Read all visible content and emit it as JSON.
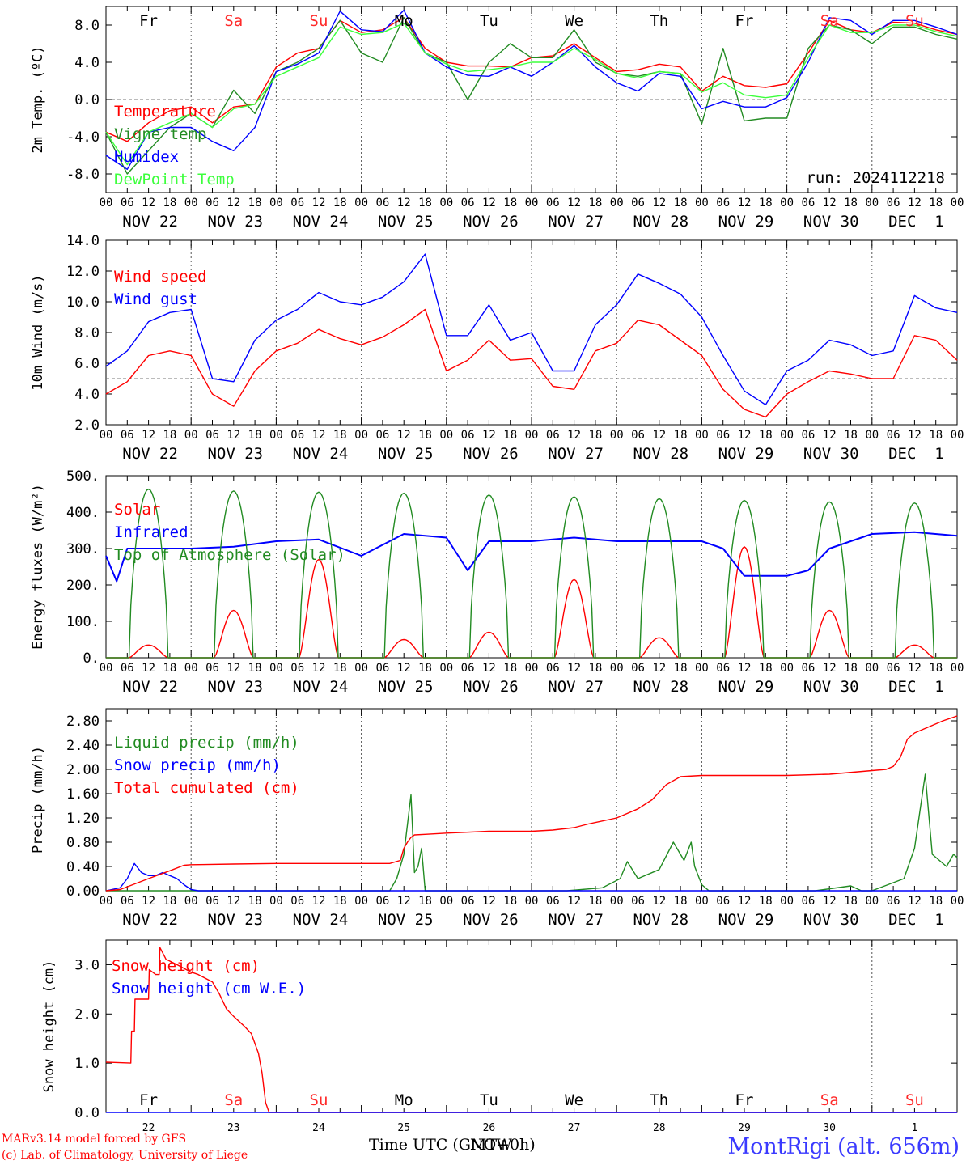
{
  "run_label": "run: 2024112218",
  "day_abbrevs": [
    "Fr",
    "Sa",
    "Su",
    "Mo",
    "Tu",
    "We",
    "Th",
    "Fr",
    "Sa",
    "Su"
  ],
  "weekend_color": "#ff2a2a",
  "weekday_color": "#000000",
  "hour_ticks": [
    "00",
    "06",
    "12",
    "18"
  ],
  "date_labels": [
    "NOV 22",
    "NOV 23",
    "NOV 24",
    "NOV 25",
    "NOV 26",
    "NOV 27",
    "NOV 28",
    "NOV 29",
    "NOV 30",
    "DEC  1"
  ],
  "snow_day_numbers": [
    "22",
    "23",
    "24",
    "25",
    "26",
    "27",
    "28",
    "29",
    "30",
    "1"
  ],
  "footer": {
    "model_line": "MARv3.14 model forced by GFS",
    "lab_line": "(c) Lab. of Climatology, University of Liege",
    "time_axis_label": "Time UTC (GMT+0h)",
    "time_axis_overprint": "NOW",
    "station": "MontRigi (alt. 656m)"
  },
  "chart_data": [
    {
      "type": "line",
      "id": "temperature",
      "ylabel": "2m Temp. (ºC)",
      "ylim": [
        -10,
        10
      ],
      "yticks": [
        -8,
        -4,
        0,
        4,
        8
      ],
      "ytick_labels": [
        "-8.0",
        "-4.0",
        "0.0",
        "4.0",
        "8.0"
      ],
      "reference_line": 0,
      "x_hours": [
        0,
        6,
        12,
        18,
        24,
        30,
        36,
        42,
        48,
        54,
        60,
        66,
        72,
        78,
        84,
        90,
        96,
        102,
        108,
        114,
        120,
        126,
        132,
        138,
        144,
        150,
        156,
        162,
        168,
        174,
        180,
        186,
        192,
        198,
        204,
        210,
        216,
        222,
        228,
        234,
        240
      ],
      "series": [
        {
          "name": "Temperature",
          "color": "#ff0000",
          "values": [
            -3.5,
            -4.5,
            -2.5,
            -1.2,
            -0.8,
            -2.5,
            -0.8,
            -0.5,
            3.5,
            5,
            5.5,
            8.5,
            7.2,
            7.5,
            8.8,
            5.5,
            4,
            3.6,
            3.6,
            3.5,
            4.5,
            4.7,
            6,
            4.5,
            3,
            3.2,
            3.8,
            3.5,
            0.9,
            2.5,
            1.5,
            1.3,
            1.7,
            5,
            8.5,
            7.5,
            7.2,
            8.3,
            8.2,
            7.5,
            7
          ]
        },
        {
          "name": "Vigne temp",
          "color": "#228b22",
          "values": [
            -3.5,
            -8,
            -5.5,
            -3,
            -1.5,
            -3,
            1,
            -1.5,
            3,
            4,
            5.5,
            8.5,
            5,
            4,
            8.8,
            5,
            4,
            0,
            4,
            6,
            4.5,
            4.5,
            7.5,
            4,
            2.8,
            2.5,
            3,
            2.8,
            -2.6,
            5.5,
            -2.3,
            -2,
            -2,
            5.5,
            8,
            7.5,
            6,
            7.8,
            7.8,
            7,
            6.5
          ]
        },
        {
          "name": "Humidex",
          "color": "#0000ff",
          "values": [
            -6,
            -7.5,
            -3.5,
            -3,
            -3,
            -4.5,
            -5.5,
            -3,
            3,
            3.8,
            5,
            9.5,
            7.5,
            7.3,
            9.6,
            5,
            3.5,
            2.6,
            2.5,
            3.5,
            2.5,
            4,
            5.8,
            3.5,
            1.8,
            0.9,
            2.8,
            2.5,
            -1,
            -0.2,
            -0.8,
            -0.8,
            0.2,
            4,
            8.8,
            8.5,
            7,
            8.5,
            8.5,
            7.8,
            7
          ]
        },
        {
          "name": "DewPoint Temp",
          "color": "#3cff3c",
          "values": [
            -3.5,
            -7,
            -3.5,
            -2.5,
            -1.5,
            -3,
            -1,
            -0.5,
            2.5,
            3.5,
            4.5,
            7.8,
            7,
            7.2,
            8.2,
            5,
            3.8,
            3,
            3.2,
            3.5,
            4,
            4,
            5.5,
            4.3,
            2.8,
            2.3,
            3,
            2.8,
            0.8,
            1.8,
            0.5,
            0.2,
            0.5,
            4.5,
            8,
            7.2,
            7.2,
            8,
            8,
            7.3,
            6.8
          ]
        }
      ]
    },
    {
      "type": "line",
      "id": "wind",
      "ylabel": "10m Wind (m/s)",
      "ylim": [
        2,
        14
      ],
      "yticks": [
        2,
        4,
        6,
        8,
        10,
        12,
        14
      ],
      "ytick_labels": [
        "2.0",
        "4.0",
        "6.0",
        "8.0",
        "10.0",
        "12.0",
        "14.0"
      ],
      "reference_line": 5,
      "x_hours": [
        0,
        6,
        12,
        18,
        24,
        30,
        36,
        42,
        48,
        54,
        60,
        66,
        72,
        78,
        84,
        90,
        96,
        102,
        108,
        114,
        120,
        126,
        132,
        138,
        144,
        150,
        156,
        162,
        168,
        174,
        180,
        186,
        192,
        198,
        204,
        210,
        216,
        222,
        228,
        234,
        240
      ],
      "series": [
        {
          "name": "Wind speed",
          "color": "#ff0000",
          "values": [
            4,
            4.8,
            6.5,
            6.8,
            6.5,
            4,
            3.2,
            5.5,
            6.8,
            7.3,
            8.2,
            7.6,
            7.2,
            7.7,
            8.5,
            9.5,
            5.5,
            6.2,
            7.5,
            6.2,
            6.3,
            4.5,
            4.3,
            6.8,
            7.3,
            8.8,
            8.5,
            7.5,
            6.5,
            4.3,
            3,
            2.5,
            4,
            4.8,
            5.5,
            5.3,
            5,
            5,
            7.8,
            7.5,
            6.2
          ]
        },
        {
          "name": "Wind gust",
          "color": "#0000ff",
          "values": [
            5.8,
            6.8,
            8.7,
            9.3,
            9.5,
            5,
            4.8,
            7.5,
            8.8,
            9.5,
            10.6,
            10,
            9.8,
            10.3,
            11.3,
            13.1,
            7.8,
            7.8,
            9.8,
            7.5,
            8,
            5.5,
            5.5,
            8.5,
            9.8,
            11.8,
            11.2,
            10.5,
            9,
            6.5,
            4.2,
            3.3,
            5.5,
            6.2,
            7.5,
            7.2,
            6.5,
            6.8,
            10.4,
            9.6,
            9.3
          ]
        }
      ]
    },
    {
      "type": "line",
      "id": "energy",
      "ylabel": "Energy fluxes (W/m²)",
      "ylim": [
        0,
        500
      ],
      "yticks": [
        0,
        100,
        200,
        300,
        400,
        500
      ],
      "ytick_labels": [
        "0.",
        "100.",
        "200.",
        "300.",
        "400.",
        "500."
      ],
      "series": [
        {
          "name": "Solar",
          "color": "#ff0000",
          "peaks": [
            [
              12,
              35
            ],
            [
              36,
              130
            ],
            [
              60,
              270
            ],
            [
              84,
              50
            ],
            [
              108,
              70
            ],
            [
              132,
              215
            ],
            [
              156,
              55
            ],
            [
              180,
              305
            ],
            [
              204,
              130
            ],
            [
              228,
              35
            ]
          ]
        },
        {
          "name": "Infrared",
          "color": "#0000ff",
          "x_hours": [
            0,
            3,
            6,
            12,
            24,
            36,
            48,
            60,
            72,
            84,
            96,
            102,
            108,
            120,
            132,
            144,
            156,
            168,
            174,
            180,
            192,
            198,
            204,
            216,
            228,
            240
          ],
          "values": [
            280,
            210,
            300,
            300,
            300,
            305,
            320,
            325,
            280,
            340,
            330,
            240,
            320,
            320,
            330,
            320,
            320,
            320,
            300,
            225,
            225,
            240,
            300,
            340,
            345,
            335
          ]
        },
        {
          "name": "Top of Atmosphere (Solar)",
          "color": "#228b22",
          "peaks": [
            [
              12,
              463
            ],
            [
              36,
              458
            ],
            [
              60,
              455
            ],
            [
              84,
              452
            ],
            [
              108,
              447
            ],
            [
              132,
              442
            ],
            [
              156,
              437
            ],
            [
              180,
              432
            ],
            [
              204,
              428
            ],
            [
              228,
              425
            ]
          ]
        }
      ]
    },
    {
      "type": "line",
      "id": "precip",
      "ylabel": "Precip (mm/h)",
      "ylim": [
        0,
        3
      ],
      "yticks": [
        0,
        0.4,
        0.8,
        1.2,
        1.6,
        2.0,
        2.4,
        2.8
      ],
      "ytick_labels": [
        "0.00",
        "0.40",
        "0.80",
        "1.20",
        "1.60",
        "2.00",
        "2.40",
        "2.80"
      ],
      "series": [
        {
          "name": "Liquid precip (mm/h)",
          "color": "#228b22",
          "x_hours": [
            0,
            80,
            82,
            84,
            86,
            87,
            88,
            89,
            90,
            92,
            96,
            130,
            140,
            145,
            147,
            150,
            156,
            160,
            163,
            165,
            166,
            168,
            170,
            172,
            200,
            210,
            213,
            216,
            225,
            228,
            231,
            233,
            235,
            237,
            239,
            240
          ],
          "values": [
            0,
            0,
            0.2,
            0.6,
            1.58,
            0.3,
            0.4,
            0.7,
            0,
            0,
            0,
            0,
            0.05,
            0.2,
            0.48,
            0.2,
            0.35,
            0.8,
            0.5,
            0.8,
            0.4,
            0.1,
            0,
            0,
            0,
            0.08,
            0,
            0,
            0.2,
            0.7,
            1.92,
            0.6,
            0.5,
            0.4,
            0.6,
            0.55
          ]
        },
        {
          "name": "Snow precip (mm/h)",
          "color": "#0000ff",
          "x_hours": [
            0,
            4,
            6,
            8,
            10,
            12,
            14,
            16,
            18,
            20,
            22,
            24,
            26,
            240
          ],
          "values": [
            0,
            0.05,
            0.2,
            0.45,
            0.3,
            0.25,
            0.25,
            0.3,
            0.25,
            0.2,
            0.1,
            0.02,
            0,
            0
          ]
        },
        {
          "name": "Total cumulated (cm)",
          "color": "#ff0000",
          "x_hours": [
            0,
            4,
            12,
            18,
            22,
            24,
            36,
            48,
            72,
            80,
            83,
            84,
            85,
            86,
            87,
            90,
            96,
            108,
            120,
            126,
            132,
            136,
            144,
            150,
            154,
            158,
            162,
            168,
            180,
            192,
            204,
            216,
            220,
            222,
            224,
            226,
            228,
            232,
            236,
            240
          ],
          "values": [
            0,
            0.02,
            0.2,
            0.33,
            0.42,
            0.43,
            0.44,
            0.45,
            0.45,
            0.45,
            0.5,
            0.7,
            0.8,
            0.88,
            0.92,
            0.93,
            0.95,
            0.98,
            0.98,
            1.0,
            1.04,
            1.1,
            1.2,
            1.35,
            1.5,
            1.75,
            1.88,
            1.9,
            1.9,
            1.9,
            1.92,
            1.98,
            2.0,
            2.05,
            2.2,
            2.5,
            2.6,
            2.7,
            2.8,
            2.88
          ]
        }
      ]
    },
    {
      "type": "line",
      "id": "snow",
      "ylabel": "Snow height (cm)",
      "ylim": [
        0,
        3.5
      ],
      "yticks": [
        0,
        1,
        2,
        3
      ],
      "ytick_labels": [
        "0.0",
        "1.0",
        "2.0",
        "3.0"
      ],
      "series": [
        {
          "name": "Snow height (cm)",
          "color": "#ff0000",
          "x_hours": [
            0,
            7,
            7.2,
            8,
            8.2,
            10,
            10.2,
            12,
            12.2,
            14,
            14.2,
            15,
            15.2,
            17,
            17.2,
            20,
            24,
            26,
            30,
            32,
            34,
            36,
            39,
            41,
            43,
            44,
            45,
            46,
            47,
            240
          ],
          "values": [
            1.02,
            1.0,
            1.65,
            1.65,
            2.3,
            2.3,
            2.3,
            2.3,
            2.9,
            2.8,
            2.8,
            2.8,
            3.35,
            3.1,
            3.1,
            3.0,
            2.85,
            2.8,
            2.65,
            2.4,
            2.1,
            1.95,
            1.75,
            1.6,
            1.2,
            0.8,
            0.2,
            0,
            0,
            0
          ]
        },
        {
          "name": "Snow height (cm W.E.)",
          "color": "#0000ff",
          "x_hours": [
            0,
            240
          ],
          "values": [
            0,
            0
          ]
        }
      ]
    }
  ]
}
